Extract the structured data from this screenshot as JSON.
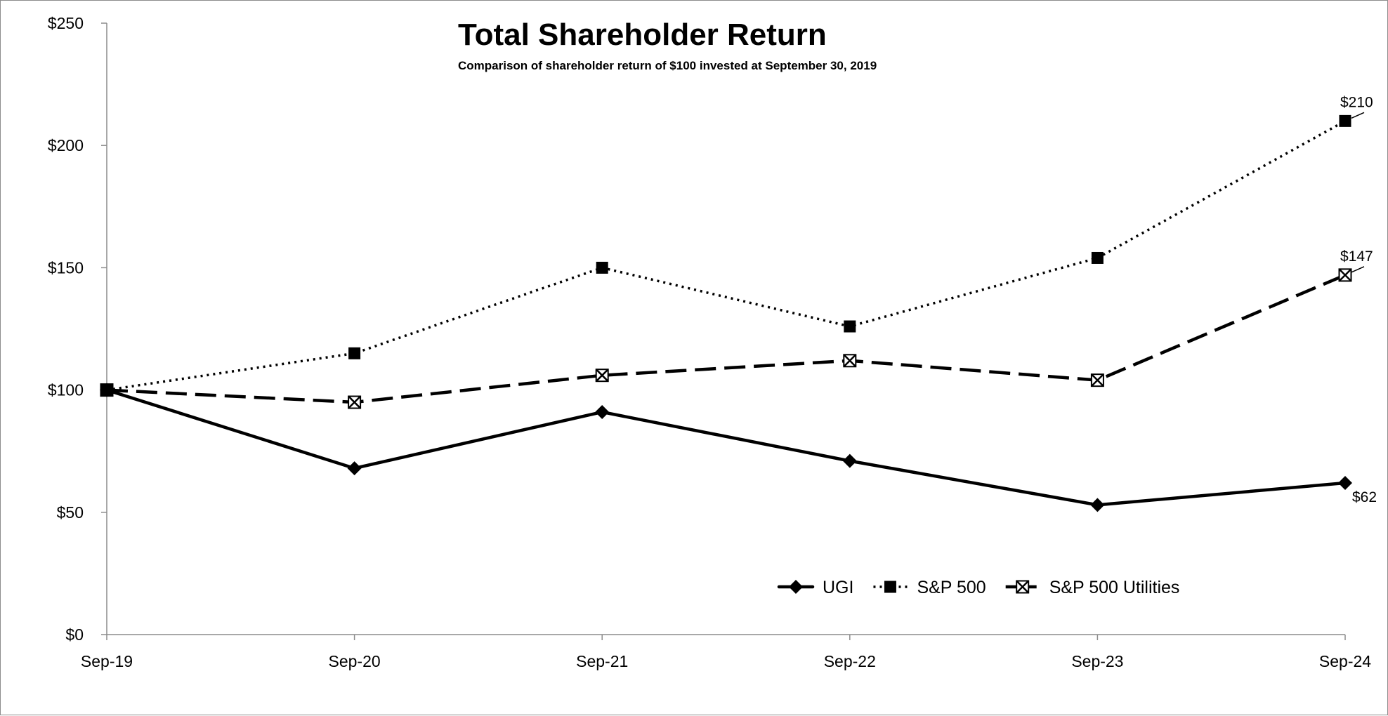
{
  "chart_data": {
    "type": "line",
    "title": "Total Shareholder Return",
    "subtitle": "Comparison of shareholder return of $100 invested at September 30, 2019",
    "xlabel": "",
    "ylabel": "",
    "categories": [
      "Sep-19",
      "Sep-20",
      "Sep-21",
      "Sep-22",
      "Sep-23",
      "Sep-24"
    ],
    "ylim": [
      0,
      250
    ],
    "yticks": [
      0,
      50,
      100,
      150,
      200,
      250
    ],
    "ytick_labels": [
      "$0",
      "$50",
      "$100",
      "$150",
      "$200",
      "$250"
    ],
    "grid": false,
    "legend_position": "bottom-center",
    "series": [
      {
        "name": "UGI",
        "values": [
          100,
          68,
          91,
          71,
          53,
          62
        ],
        "line_style": "solid",
        "marker": "diamond",
        "end_label": "$62",
        "color": "#000000"
      },
      {
        "name": "S&P 500",
        "values": [
          100,
          115,
          150,
          126,
          154,
          210
        ],
        "line_style": "dotted",
        "marker": "square",
        "end_label": "$210",
        "color": "#000000"
      },
      {
        "name": "S&P 500 Utilities",
        "values": [
          100,
          95,
          106,
          112,
          104,
          147
        ],
        "line_style": "dashed",
        "marker": "boxed-x",
        "end_label": "$147",
        "color": "#000000"
      }
    ]
  }
}
